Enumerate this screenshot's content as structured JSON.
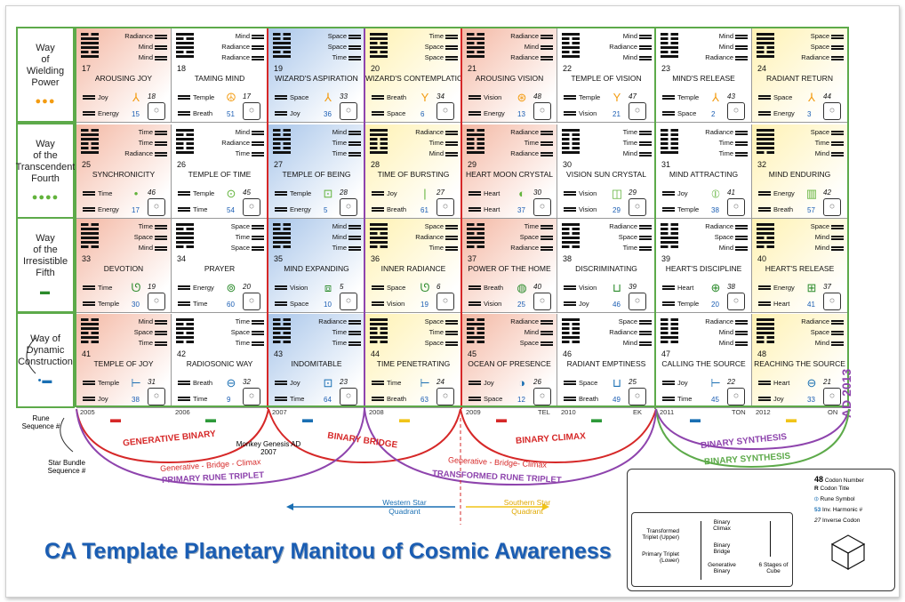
{
  "title": "CA Template Planetary Manitou of Cosmic Awareness",
  "ad_label": "AD 2013",
  "row_labels": [
    {
      "name": "Way of Wielding Power",
      "lines": [
        "Way",
        "of",
        "Wielding",
        "Power"
      ],
      "dots": "●●●",
      "dot_color": "#f39c12"
    },
    {
      "name": "Way of the Transcendent Fourth",
      "lines": [
        "Way",
        "of the",
        "Transcendent",
        "Fourth"
      ],
      "dots": "●●●●",
      "dot_color": "#62b33c"
    },
    {
      "name": "Way of the Irresistible Fifth",
      "lines": [
        "Way",
        "of the",
        "Irresistible",
        "Fifth"
      ],
      "dots": "▬",
      "dot_color": "#2a8a2a"
    },
    {
      "name": "Way of Dynamic Construction",
      "lines": [
        "Way of",
        "Dynamic",
        "Construction"
      ],
      "dots": "•▬",
      "dot_color": "#1a6fb3"
    }
  ],
  "cells": [
    {
      "num": "17",
      "title": "AROUSING JOY",
      "lines": [
        "Radiance",
        "Mind",
        "Mind"
      ],
      "l1": "Joy",
      "l2": "Energy",
      "rune": "⅄",
      "harm": "18",
      "inv": "15",
      "color": "#f4b8a4"
    },
    {
      "num": "18",
      "title": "TAMING MIND",
      "lines": [
        "Mind",
        "Radiance",
        "Radiance"
      ],
      "l1": "Temple",
      "l2": "Breath",
      "rune": "☮",
      "harm": "17",
      "inv": "51",
      "color": "#ffffff"
    },
    {
      "num": "19",
      "title": "WIZARD'S ASPIRATION",
      "lines": [
        "Space",
        "Space",
        "Time"
      ],
      "l1": "Space",
      "l2": "Joy",
      "rune": "⅄",
      "harm": "33",
      "inv": "36",
      "color": "#a9c6ea"
    },
    {
      "num": "20",
      "title": "WIZARD'S CONTEMPLATION",
      "lines": [
        "Time",
        "Space",
        "Space"
      ],
      "l1": "Breath",
      "l2": "Space",
      "rune": "Y",
      "harm": "34",
      "inv": "6",
      "color": "#fff2b3"
    },
    {
      "num": "21",
      "title": "AROUSING VISION",
      "lines": [
        "Radiance",
        "Mind",
        "Radiance"
      ],
      "l1": "Vision",
      "l2": "Energy",
      "rune": "⊛",
      "harm": "48",
      "inv": "13",
      "color": "#f4b8a4"
    },
    {
      "num": "22",
      "title": "TEMPLE OF VISION",
      "lines": [
        "Mind",
        "Radiance",
        "Mind"
      ],
      "l1": "Temple",
      "l2": "Vision",
      "rune": "Y",
      "harm": "47",
      "inv": "21",
      "color": "#ffffff"
    },
    {
      "num": "23",
      "title": "MIND'S RELEASE",
      "lines": [
        "Mind",
        "Mind",
        "Radiance"
      ],
      "l1": "Temple",
      "l2": "Space",
      "rune": "⅄",
      "harm": "43",
      "inv": "2",
      "color": "#ffffff"
    },
    {
      "num": "24",
      "title": "RADIANT RETURN",
      "lines": [
        "Space",
        "Space",
        "Radiance"
      ],
      "l1": "Space",
      "l2": "Energy",
      "rune": "⅄",
      "harm": "44",
      "inv": "3",
      "color": "#fff2b3"
    },
    {
      "num": "25",
      "title": "SYNCHRONICITY",
      "lines": [
        "Time",
        "Time",
        "Radiance"
      ],
      "l1": "Time",
      "l2": "Energy",
      "rune": "•",
      "harm": "46",
      "inv": "17",
      "color": "#f4b8a4"
    },
    {
      "num": "26",
      "title": "TEMPLE OF TIME",
      "lines": [
        "Mind",
        "Radiance",
        "Time"
      ],
      "l1": "Temple",
      "l2": "Time",
      "rune": "⊙",
      "harm": "45",
      "inv": "54",
      "color": "#ffffff"
    },
    {
      "num": "27",
      "title": "TEMPLE OF BEING",
      "lines": [
        "Mind",
        "Time",
        "Time"
      ],
      "l1": "Temple",
      "l2": "Energy",
      "rune": "⊡",
      "harm": "28",
      "inv": "5",
      "color": "#a9c6ea"
    },
    {
      "num": "28",
      "title": "TIME OF BURSTING",
      "lines": [
        "Radiance",
        "Time",
        "Mind"
      ],
      "l1": "Joy",
      "l2": "Breath",
      "rune": "|",
      "harm": "27",
      "inv": "61",
      "color": "#fff2b3"
    },
    {
      "num": "29",
      "title": "HEART MOON CRYSTAL",
      "lines": [
        "Radiance",
        "Time",
        "Radiance"
      ],
      "l1": "Heart",
      "l2": "Heart",
      "rune": "◐",
      "harm": "30",
      "inv": "37",
      "color": "#f4b8a4"
    },
    {
      "num": "30",
      "title": "VISION SUN CRYSTAL",
      "lines": [
        "Time",
        "Time",
        "Mind"
      ],
      "l1": "Vision",
      "l2": "Vision",
      "rune": "◫",
      "harm": "29",
      "inv": "29",
      "color": "#ffffff"
    },
    {
      "num": "31",
      "title": "MIND ATTRACTING",
      "lines": [
        "Radiance",
        "Time",
        "Time"
      ],
      "l1": "Joy",
      "l2": "Temple",
      "rune": "⦶",
      "harm": "41",
      "inv": "38",
      "color": "#ffffff"
    },
    {
      "num": "32",
      "title": "MIND ENDURING",
      "lines": [
        "Space",
        "Time",
        "Mind"
      ],
      "l1": "Energy",
      "l2": "Breath",
      "rune": "▥",
      "harm": "42",
      "inv": "57",
      "color": "#fff2b3"
    },
    {
      "num": "33",
      "title": "DEVOTION",
      "lines": [
        "Time",
        "Space",
        "Mind"
      ],
      "l1": "Time",
      "l2": "Temple",
      "rune": "ᘎ",
      "harm": "19",
      "inv": "30",
      "color": "#f4b8a4"
    },
    {
      "num": "34",
      "title": "PRAYER",
      "lines": [
        "Space",
        "Time",
        "Space"
      ],
      "l1": "Energy",
      "l2": "Time",
      "rune": "⊚",
      "harm": "20",
      "inv": "60",
      "color": "#ffffff"
    },
    {
      "num": "35",
      "title": "MIND EXPANDING",
      "lines": [
        "Mind",
        "Mind",
        "Time"
      ],
      "l1": "Vision",
      "l2": "Space",
      "rune": "⧈",
      "harm": "5",
      "inv": "10",
      "color": "#a9c6ea"
    },
    {
      "num": "36",
      "title": "INNER RADIANCE",
      "lines": [
        "Space",
        "Radiance",
        "Time"
      ],
      "l1": "Space",
      "l2": "Vision",
      "rune": "ᘎ",
      "harm": "6",
      "inv": "19",
      "color": "#fff2b3"
    },
    {
      "num": "37",
      "title": "POWER OF THE HOME",
      "lines": [
        "Time",
        "Space",
        "Radiance"
      ],
      "l1": "Breath",
      "l2": "Vision",
      "rune": "◍",
      "harm": "40",
      "inv": "25",
      "color": "#f4b8a4"
    },
    {
      "num": "38",
      "title": "DISCRIMINATING",
      "lines": [
        "Radiance",
        "Space",
        "Time"
      ],
      "l1": "Vision",
      "l2": "Joy",
      "rune": "⊔",
      "harm": "39",
      "inv": "46",
      "color": "#ffffff"
    },
    {
      "num": "39",
      "title": "HEART'S DISCIPLINE",
      "lines": [
        "Radiance",
        "Space",
        "Mind"
      ],
      "l1": "Heart",
      "l2": "Temple",
      "rune": "⊕",
      "harm": "38",
      "inv": "20",
      "color": "#ffffff"
    },
    {
      "num": "40",
      "title": "HEART'S RELEASE",
      "lines": [
        "Space",
        "Mind",
        "Mind"
      ],
      "l1": "Energy",
      "l2": "Heart",
      "rune": "⊞",
      "harm": "37",
      "inv": "41",
      "color": "#fff2b3"
    },
    {
      "num": "41",
      "title": "TEMPLE OF JOY",
      "lines": [
        "Mind",
        "Space",
        "Time"
      ],
      "l1": "Temple",
      "l2": "Joy",
      "rune": "⊢",
      "harm": "31",
      "inv": "38",
      "color": "#f4b8a4"
    },
    {
      "num": "42",
      "title": "RADIOSONIC WAY",
      "lines": [
        "Time",
        "Space",
        "Time"
      ],
      "l1": "Breath",
      "l2": "Time",
      "rune": "⊖",
      "harm": "32",
      "inv": "9",
      "color": "#ffffff"
    },
    {
      "num": "43",
      "title": "INDOMITABLE",
      "lines": [
        "Radiance",
        "Time",
        "Time"
      ],
      "l1": "Joy",
      "l2": "Time",
      "rune": "⊡",
      "harm": "23",
      "inv": "64",
      "color": "#a9c6ea"
    },
    {
      "num": "44",
      "title": "TIME PENETRATING",
      "lines": [
        "Space",
        "Time",
        "Space"
      ],
      "l1": "Time",
      "l2": "Breath",
      "rune": "⊢",
      "harm": "24",
      "inv": "63",
      "color": "#fff2b3"
    },
    {
      "num": "45",
      "title": "OCEAN OF PRESENCE",
      "lines": [
        "Radiance",
        "Mind",
        "Space"
      ],
      "l1": "Joy",
      "l2": "Space",
      "rune": "◑",
      "harm": "26",
      "inv": "12",
      "color": "#f4b8a4"
    },
    {
      "num": "46",
      "title": "RADIANT EMPTINESS",
      "lines": [
        "Space",
        "Radiance",
        "Mind"
      ],
      "l1": "Space",
      "l2": "Breath",
      "rune": "⊔",
      "harm": "25",
      "inv": "49",
      "color": "#ffffff"
    },
    {
      "num": "47",
      "title": "CALLING THE SOURCE",
      "lines": [
        "Radiance",
        "Mind",
        "Mind"
      ],
      "l1": "Joy",
      "l2": "Time",
      "rune": "⊢",
      "harm": "22",
      "inv": "45",
      "color": "#ffffff"
    },
    {
      "num": "48",
      "title": "REACHING THE SOURCE",
      "lines": [
        "Radiance",
        "Space",
        "Mind"
      ],
      "l1": "Heart",
      "l2": "Joy",
      "rune": "⊖",
      "harm": "21",
      "inv": "33",
      "color": "#fff2b3"
    }
  ],
  "years": [
    "2005",
    "2006",
    "2007",
    "2008",
    "2009",
    "2010",
    "2011",
    "2012"
  ],
  "year_suffix": [
    "",
    "",
    "",
    "",
    "TEL",
    "EK",
    "TON",
    "ON"
  ],
  "year_glyph_colors": [
    "#d62828",
    "#2e9a3a",
    "#1a6fb3",
    "#f0c419",
    "#d62828",
    "#2e9a3a",
    "#1a6fb3",
    "#f0c419"
  ],
  "annotations": {
    "rune_sequence": "Rune Sequence #",
    "star_bundle": "Star Bundle Sequence #",
    "monkey": "Monkey Genesis AD 2007",
    "generative_binary": "GENERATIVE BINARY",
    "binary_bridge": "BINARY BRIDGE",
    "binary_climax": "BINARY CLIMAX",
    "binary_synthesis_1": "BINARY SYNTHESIS",
    "binary_synthesis_2": "BINARY SYNTHESIS",
    "gbc_1": "Generative - Bridge - Climax",
    "primary_triplet": "PRIMARY RUNE TRIPLET",
    "gbc_2": "Generative - Bridge- Climax",
    "transformed_triplet": "TRANSFORMED RUNE TRIPLET",
    "western": "Western Star Quadrant",
    "southern": "Southern Star Quadrant"
  },
  "legend": {
    "codon_number": "Codon Number",
    "codon_title": "Codon Title",
    "rune_symbol": "Rune Symbol",
    "inv_harmonic": "Inv. Harmonic #",
    "inverse_codon": "Inverse Codon",
    "n48": "48",
    "nR": "R",
    "n53": "53",
    "n27": "27",
    "transformed_triplet": "Transformed Triplet (Upper)",
    "primary_triplet": "Primary Triplet (Lower)",
    "binary_climax": "Binary Climax",
    "binary_bridge": "Binary Bridge",
    "generative_binary": "Generative Binary",
    "six_stages": "6 Stages of Cube"
  }
}
